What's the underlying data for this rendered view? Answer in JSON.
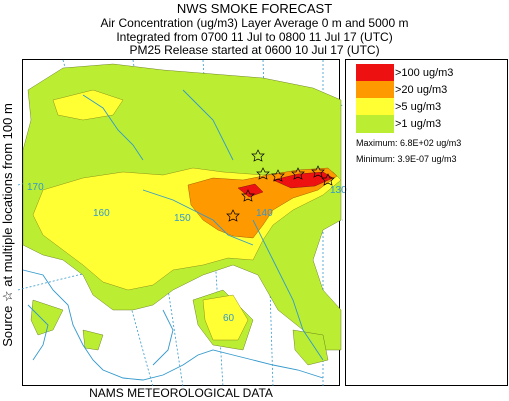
{
  "header": {
    "title": "NWS SMOKE FORECAST",
    "line2": "Air Concentration (ug/m3) Layer Average    0 m and  5000 m",
    "line3": "Integrated from 0700 11 Jul to 0800 11 Jul 17 (UTC)",
    "line4": "PM25 Release started at 0600 10 Jul 17 (UTC)"
  },
  "side_label": "Source ☆  at multiple locations     from   100 m",
  "footer": "NAMS METEOROLOGICAL DATA",
  "legend": {
    "items": [
      {
        "label": ">100 ug/m3",
        "color": "#ee1111"
      },
      {
        "label": ">20 ug/m3",
        "color": "#ff9900"
      },
      {
        "label": ">5 ug/m3",
        "color": "#ffff33"
      },
      {
        "label": ">1 ug/m3",
        "color": "#bbee33"
      }
    ],
    "maximum": "Maximum: 6.8E+02 ug/m3",
    "minimum": "Minimum: 3.9E-07 ug/m3"
  },
  "map": {
    "lon_labels": [
      "170",
      "160",
      "150",
      "140",
      "130",
      "60"
    ],
    "colors": {
      "water": "#3399cc",
      "grid": "#3399cc",
      "source": "#000000"
    }
  }
}
